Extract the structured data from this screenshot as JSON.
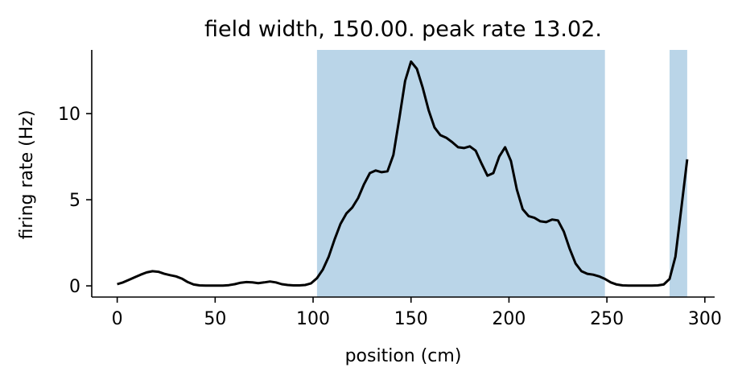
{
  "chart_data": {
    "type": "line",
    "title": "field width, 150.00. peak rate 13.02.",
    "xlabel": "position (cm)",
    "ylabel": "firing rate (Hz)",
    "xlim": [
      -13,
      305
    ],
    "ylim": [
      -0.65,
      13.7
    ],
    "xticks": [
      0,
      50,
      100,
      150,
      200,
      250,
      300
    ],
    "yticks": [
      0,
      5,
      10
    ],
    "grid": false,
    "line_color": "#000000",
    "field_color": "#bad5e8",
    "field_regions": [
      [
        102,
        249
      ],
      [
        282,
        291
      ]
    ],
    "x": [
      0,
      3,
      6,
      9,
      12,
      15,
      18,
      21,
      24,
      27,
      30,
      33,
      36,
      39,
      42,
      45,
      48,
      51,
      54,
      57,
      60,
      63,
      66,
      69,
      72,
      75,
      78,
      81,
      84,
      87,
      90,
      93,
      96,
      99,
      102,
      105,
      108,
      111,
      114,
      117,
      120,
      123,
      126,
      129,
      132,
      135,
      138,
      141,
      144,
      147,
      150,
      153,
      156,
      159,
      162,
      165,
      168,
      171,
      174,
      177,
      180,
      183,
      186,
      189,
      192,
      195,
      198,
      201,
      204,
      207,
      210,
      213,
      216,
      219,
      222,
      225,
      228,
      231,
      234,
      237,
      240,
      243,
      246,
      249,
      252,
      255,
      258,
      261,
      264,
      267,
      270,
      273,
      276,
      279,
      282,
      285,
      288,
      291
    ],
    "y": [
      0.1,
      0.2,
      0.35,
      0.5,
      0.65,
      0.78,
      0.85,
      0.82,
      0.7,
      0.62,
      0.55,
      0.42,
      0.22,
      0.08,
      0.03,
      0.02,
      0.02,
      0.02,
      0.02,
      0.04,
      0.1,
      0.18,
      0.22,
      0.2,
      0.16,
      0.2,
      0.25,
      0.2,
      0.1,
      0.05,
      0.03,
      0.03,
      0.05,
      0.15,
      0.45,
      0.95,
      1.7,
      2.7,
      3.6,
      4.2,
      4.55,
      5.1,
      5.9,
      6.55,
      6.7,
      6.6,
      6.65,
      7.6,
      9.7,
      11.9,
      13.02,
      12.6,
      11.5,
      10.2,
      9.2,
      8.75,
      8.6,
      8.35,
      8.05,
      8.0,
      8.1,
      7.85,
      7.1,
      6.4,
      6.55,
      7.5,
      8.05,
      7.25,
      5.6,
      4.45,
      4.05,
      3.95,
      3.75,
      3.7,
      3.85,
      3.8,
      3.15,
      2.15,
      1.3,
      0.85,
      0.7,
      0.65,
      0.55,
      0.4,
      0.2,
      0.08,
      0.03,
      0.02,
      0.02,
      0.02,
      0.02,
      0.02,
      0.03,
      0.08,
      0.4,
      1.7,
      4.5,
      7.35
    ]
  }
}
